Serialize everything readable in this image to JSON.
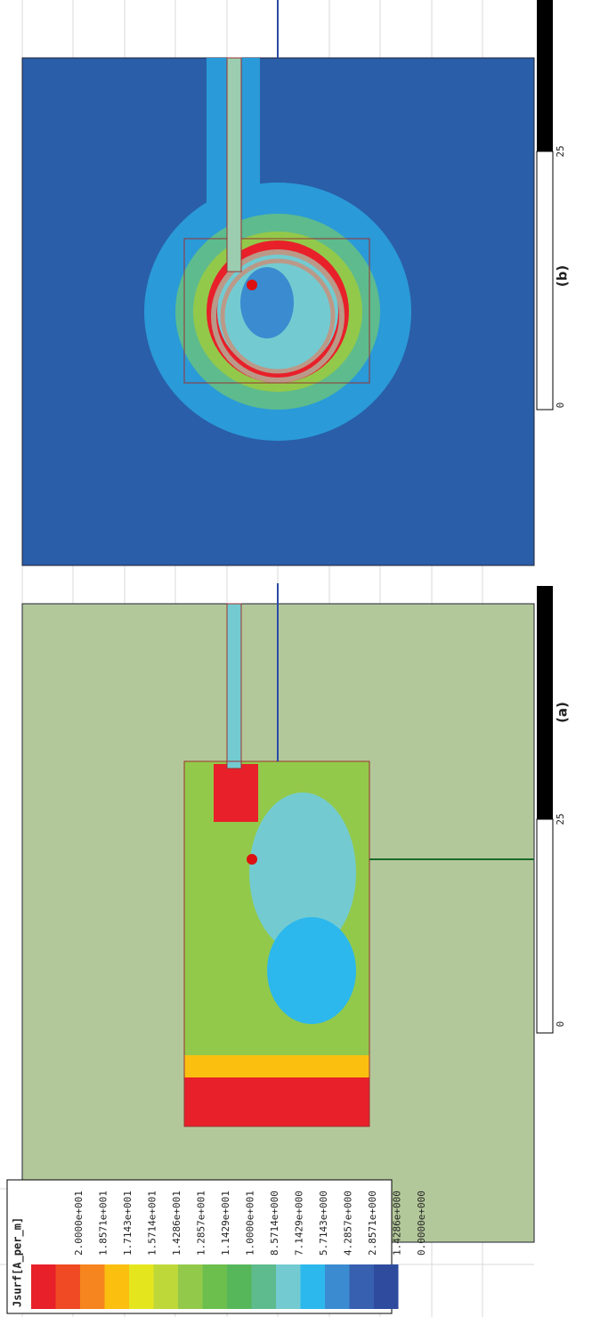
{
  "legend": {
    "title": "Jsurf[A_per_m]",
    "labels": [
      "2.0000e+001",
      "1.8571e+001",
      "1.7143e+001",
      "1.5714e+001",
      "1.4286e+001",
      "1.2857e+001",
      "1.1429e+001",
      "1.0000e+001",
      "8.5714e+000",
      "7.1429e+000",
      "5.7143e+000",
      "4.2857e+000",
      "2.8571e+000",
      "1.4286e+000",
      "0.0000e+000"
    ],
    "colors": [
      "#e8202a",
      "#ef4a23",
      "#f7851f",
      "#fbbf10",
      "#e5e51e",
      "#bed83a",
      "#93c94a",
      "#6cbf4c",
      "#56b75a",
      "#5dbb8e",
      "#73cbd1",
      "#2cb8ec",
      "#3a8bd0",
      "#3760b0",
      "#2e4b9e"
    ]
  },
  "panels": [
    {
      "caption": "(a)",
      "scale_labels": [
        "0",
        "25"
      ]
    },
    {
      "caption": "(b)",
      "scale_labels": [
        "0",
        "25"
      ]
    }
  ]
}
